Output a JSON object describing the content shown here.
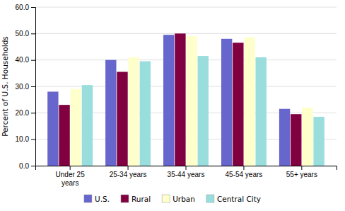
{
  "chart_data": {
    "type": "bar",
    "ylabel": "Percent of U.S. Households",
    "categories": [
      "Under 25\nyears",
      "25-34 years",
      "35-44 years",
      "45-54 years",
      "55+ years"
    ],
    "series": [
      {
        "name": "U.S.",
        "color": "#6666cc",
        "values": [
          28.0,
          40.0,
          49.5,
          48.0,
          21.5
        ]
      },
      {
        "name": "Rural",
        "color": "#800040",
        "values": [
          23.0,
          35.5,
          50.0,
          46.5,
          19.5
        ]
      },
      {
        "name": "Urban",
        "color": "#ffffcc",
        "values": [
          29.0,
          41.0,
          49.0,
          48.5,
          22.0
        ]
      },
      {
        "name": "Central City",
        "color": "#99dddd",
        "values": [
          30.5,
          39.5,
          41.5,
          41.0,
          18.5
        ]
      }
    ],
    "ylim": [
      0,
      60
    ],
    "yticks": [
      {
        "value": 0,
        "label": "0.0"
      },
      {
        "value": 10,
        "label": "10.0"
      },
      {
        "value": 20,
        "label": "20.0"
      },
      {
        "value": 30,
        "label": "30.0"
      },
      {
        "value": 40,
        "label": "40.0"
      },
      {
        "value": 50,
        "label": "50.0"
      },
      {
        "value": 60,
        "label": "60.0"
      }
    ],
    "grid": true,
    "legend": "bottom"
  }
}
